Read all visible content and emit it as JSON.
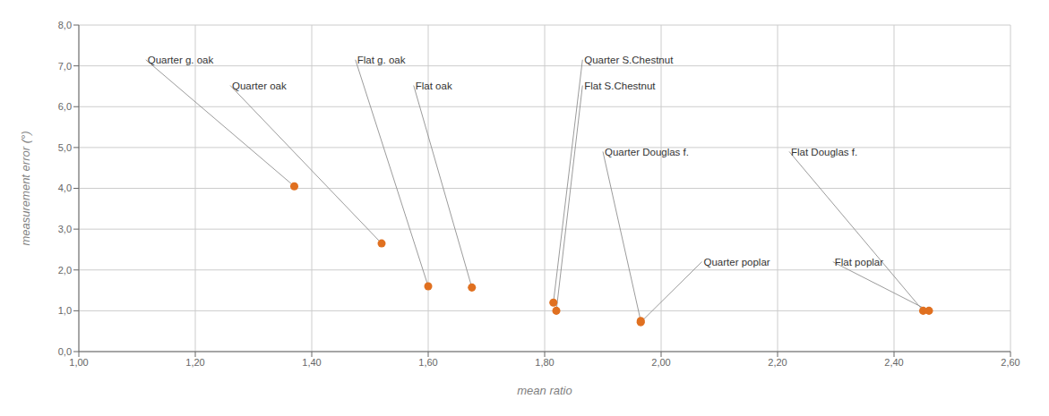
{
  "chart_data": {
    "type": "scatter",
    "xlabel": "mean ratio",
    "ylabel": "measurement error (°)",
    "x": [
      1.37,
      1.52,
      1.6,
      1.675,
      1.815,
      1.82,
      1.965,
      2.45,
      1.965,
      2.46
    ],
    "values": [
      4.05,
      2.65,
      1.6,
      1.57,
      1.2,
      1.0,
      0.75,
      1.0,
      0.72,
      1.0
    ],
    "color": "#E07020",
    "annotations": [
      {
        "label": "Quarter g. oak",
        "text_x": 1.115,
        "text_y": 7.15,
        "point_x": 1.37,
        "point_y": 4.05
      },
      {
        "label": "Quarter oak",
        "text_x": 1.26,
        "text_y": 6.52,
        "point_x": 1.52,
        "point_y": 2.65
      },
      {
        "label": "Flat g. oak",
        "text_x": 1.475,
        "text_y": 7.15,
        "point_x": 1.6,
        "point_y": 1.6
      },
      {
        "label": "Flat oak",
        "text_x": 1.575,
        "text_y": 6.52,
        "point_x": 1.675,
        "point_y": 1.57
      },
      {
        "label": "Quarter S.Chestnut",
        "text_x": 1.865,
        "text_y": 7.15,
        "point_x": 1.815,
        "point_y": 1.2
      },
      {
        "label": "Flat S.Chestnut",
        "text_x": 1.865,
        "text_y": 6.52,
        "point_x": 1.82,
        "point_y": 1.0
      },
      {
        "label": "Quarter Douglas f.",
        "text_x": 1.9,
        "text_y": 4.9,
        "point_x": 1.965,
        "point_y": 0.75
      },
      {
        "label": "Flat Douglas f.",
        "text_x": 2.22,
        "text_y": 4.9,
        "point_x": 2.45,
        "point_y": 1.0
      },
      {
        "label": "Quarter poplar",
        "text_x": 2.07,
        "text_y": 2.2,
        "point_x": 1.965,
        "point_y": 0.72
      },
      {
        "label": "Flat poplar",
        "text_x": 2.295,
        "text_y": 2.2,
        "point_x": 2.46,
        "point_y": 1.0
      }
    ],
    "xlim": [
      1.0,
      2.6
    ],
    "ylim": [
      0.0,
      8.0
    ],
    "xticks": [
      {
        "value": 1.0,
        "label": "1,00"
      },
      {
        "value": 1.2,
        "label": "1,20"
      },
      {
        "value": 1.4,
        "label": "1,40"
      },
      {
        "value": 1.6,
        "label": "1,60"
      },
      {
        "value": 1.8,
        "label": "1,80"
      },
      {
        "value": 2.0,
        "label": "2,00"
      },
      {
        "value": 2.2,
        "label": "2,20"
      },
      {
        "value": 2.4,
        "label": "2,40"
      },
      {
        "value": 2.6,
        "label": "2,60"
      }
    ],
    "yticks": [
      {
        "value": 0.0,
        "label": "0,0"
      },
      {
        "value": 1.0,
        "label": "1,0"
      },
      {
        "value": 2.0,
        "label": "2,0"
      },
      {
        "value": 3.0,
        "label": "3,0"
      },
      {
        "value": 4.0,
        "label": "4,0"
      },
      {
        "value": 5.0,
        "label": "5,0"
      },
      {
        "value": 6.0,
        "label": "6,0"
      },
      {
        "value": 7.0,
        "label": "7,0"
      },
      {
        "value": 8.0,
        "label": "8,0"
      }
    ],
    "grid": true
  }
}
